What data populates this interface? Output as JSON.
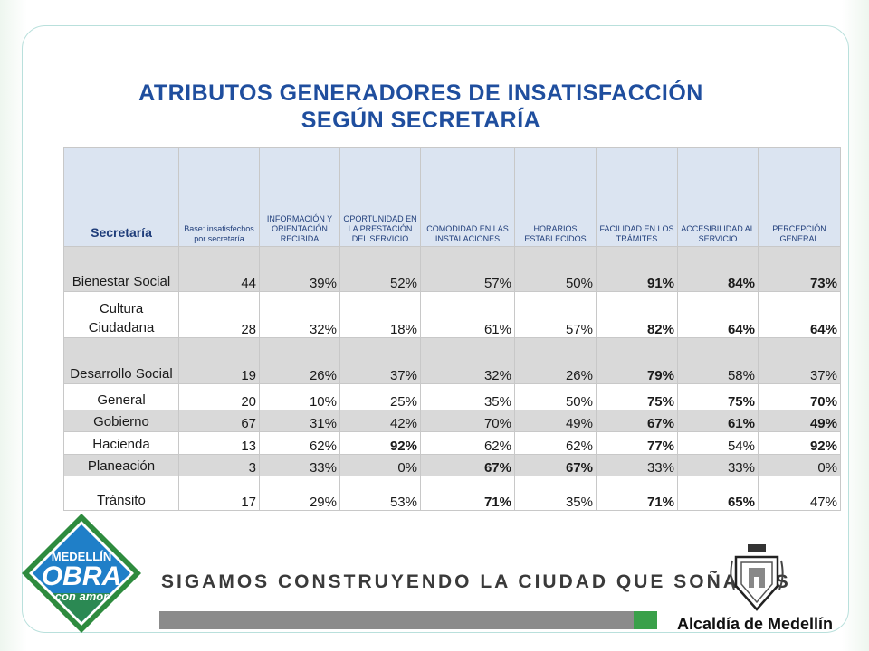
{
  "slide": {
    "title_line1": "ATRIBUTOS GENERADORES DE INSATISFACCIÓN",
    "title_line2": "SEGÚN SECRETARÍA"
  },
  "table": {
    "headers": [
      "Secretaría",
      "Base: insatisfechos por secretaría",
      "INFORMACIÓN Y ORIENTACIÓN RECIBIDA",
      "OPORTUNIDAD EN LA PRESTACIÓN DEL SERVICIO",
      "COMODIDAD EN LAS INSTALACIONES",
      "HORARIOS ESTABLECIDOS",
      "FACILIDAD EN LOS TRÁMITES",
      "ACCESIBILIDAD AL SERVICIO",
      "PERCEPCIÓN GENERAL"
    ],
    "rows": [
      {
        "name": "Bienestar Social",
        "base": "44",
        "c1": "39%",
        "c2": "52%",
        "c3": "57%",
        "c4": "50%",
        "c5": "91%",
        "c6": "84%",
        "c7": "73%"
      },
      {
        "name": "Cultura Ciudadana",
        "base": "28",
        "c1": "32%",
        "c2": "18%",
        "c3": "61%",
        "c4": "57%",
        "c5": "82%",
        "c6": "64%",
        "c7": "64%"
      },
      {
        "name": "Desarrollo Social",
        "base": "19",
        "c1": "26%",
        "c2": "37%",
        "c3": "32%",
        "c4": "26%",
        "c5": "79%",
        "c6": "58%",
        "c7": "37%"
      },
      {
        "name": "General",
        "base": "20",
        "c1": "10%",
        "c2": "25%",
        "c3": "35%",
        "c4": "50%",
        "c5": "75%",
        "c6": "75%",
        "c7": "70%"
      },
      {
        "name": "Gobierno",
        "base": "67",
        "c1": "31%",
        "c2": "42%",
        "c3": "70%",
        "c4": "49%",
        "c5": "67%",
        "c6": "61%",
        "c7": "49%"
      },
      {
        "name": "Hacienda",
        "base": "13",
        "c1": "62%",
        "c2": "92%",
        "c3": "62%",
        "c4": "62%",
        "c5": "77%",
        "c6": "54%",
        "c7": "92%"
      },
      {
        "name": "Planeación",
        "base": "3",
        "c1": "33%",
        "c2": "0%",
        "c3": "67%",
        "c4": "67%",
        "c5": "33%",
        "c6": "33%",
        "c7": "0%"
      },
      {
        "name": "Tránsito",
        "base": "17",
        "c1": "29%",
        "c2": "53%",
        "c3": "71%",
        "c4": "35%",
        "c5": "71%",
        "c6": "65%",
        "c7": "47%"
      }
    ]
  },
  "footer": {
    "logo_line1": "MEDELLÍN",
    "logo_line2": "OBRA",
    "logo_line3": "con amor",
    "slogan": "SIGAMOS CONSTRUYENDO LA CIUDAD QUE SOÑAMOS",
    "institution": "Alcaldía de Medellín"
  },
  "colors": {
    "title": "#1f4e9e",
    "header_bg": "#dbe4f1",
    "row_gray": "#d9d9d9",
    "logo_green": "#2e8b3e",
    "logo_blue": "#1f7fc8",
    "bar_gray": "#8b8b8b",
    "bar_green": "#3aa04a"
  }
}
